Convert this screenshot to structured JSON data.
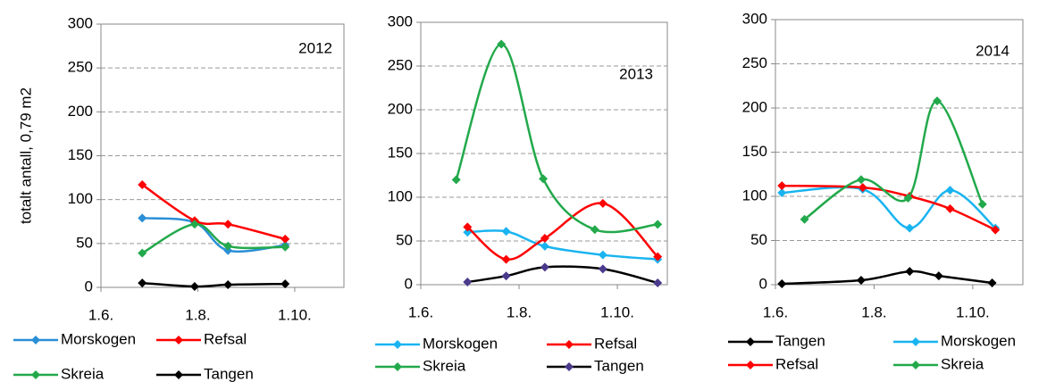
{
  "chart_data": [
    {
      "type": "line",
      "annotation": "2012",
      "y_label": "totalt antall, 0,79 m2",
      "xlim": [
        152,
        305
      ],
      "xticks": [
        {
          "value": 152,
          "label": "1.6."
        },
        {
          "value": 213,
          "label": "1.8."
        },
        {
          "value": 274,
          "label": "1.10."
        }
      ],
      "ylim": [
        0,
        300
      ],
      "yticks": [
        0,
        50,
        100,
        150,
        200,
        250,
        300
      ],
      "grid": true,
      "series": [
        {
          "name": "Morskogen",
          "color": "#2a8fd6",
          "x": [
            178,
            211,
            232,
            268
          ],
          "values": [
            79,
            74,
            42,
            48
          ]
        },
        {
          "name": "Refsal",
          "color": "#ff0000",
          "x": [
            178,
            211,
            232,
            268
          ],
          "values": [
            117,
            76,
            72,
            55
          ]
        },
        {
          "name": "Skreia",
          "color": "#22a94b",
          "x": [
            178,
            211,
            232,
            268
          ],
          "values": [
            39,
            72,
            47,
            46
          ]
        },
        {
          "name": "Tangen",
          "color": "#000000",
          "x": [
            178,
            211,
            232,
            268
          ],
          "values": [
            5,
            1,
            3,
            4
          ]
        }
      ]
    },
    {
      "type": "line",
      "annotation": "2013",
      "xlim": [
        152,
        305
      ],
      "xticks": [
        {
          "value": 152,
          "label": "1.6."
        },
        {
          "value": 213,
          "label": "1.8."
        },
        {
          "value": 274,
          "label": "1.10."
        }
      ],
      "ylim": [
        0,
        300
      ],
      "yticks": [
        0,
        50,
        100,
        150,
        200,
        250,
        300
      ],
      "grid": true,
      "series": [
        {
          "name": "Morskogen",
          "color": "#19b4f0",
          "x": [
            181,
            205,
            229,
            265,
            299
          ],
          "values": [
            60,
            61,
            44,
            34,
            29
          ]
        },
        {
          "name": "Refsal",
          "color": "#ff0000",
          "x": [
            181,
            205,
            229,
            265,
            299
          ],
          "values": [
            66,
            29,
            53,
            93,
            32
          ]
        },
        {
          "name": "Skreia",
          "color": "#22a94b",
          "x": [
            174,
            202,
            228,
            260,
            299
          ],
          "values": [
            120,
            275,
            121,
            63,
            69
          ]
        },
        {
          "name": "Tangen",
          "color": "#000000",
          "marker_color": "#4b3a8c",
          "x": [
            181,
            205,
            229,
            265,
            299
          ],
          "values": [
            3,
            10,
            20,
            18,
            2
          ]
        }
      ]
    },
    {
      "type": "line",
      "annotation": "2014",
      "xlim": [
        152,
        305
      ],
      "xticks": [
        {
          "value": 152,
          "label": "1.6."
        },
        {
          "value": 213,
          "label": "1.8."
        },
        {
          "value": 274,
          "label": "1.10."
        }
      ],
      "ylim": [
        0,
        300
      ],
      "yticks": [
        0,
        50,
        100,
        150,
        200,
        250,
        300
      ],
      "grid": true,
      "series": [
        {
          "name": "Tangen",
          "color": "#000000",
          "x": [
            156,
            205,
            235,
            253,
            286
          ],
          "values": [
            1,
            5,
            15,
            10,
            2
          ]
        },
        {
          "name": "Morskogen",
          "color": "#19b4f0",
          "x": [
            156,
            206,
            235,
            260,
            288
          ],
          "values": [
            104,
            108,
            64,
            107,
            64
          ]
        },
        {
          "name": "Refsal",
          "color": "#ff0000",
          "x": [
            156,
            206,
            235,
            260,
            288
          ],
          "values": [
            112,
            110,
            100,
            86,
            62
          ]
        },
        {
          "name": "Skreia",
          "color": "#22a94b",
          "x": [
            170,
            205,
            234,
            252,
            280
          ],
          "values": [
            74,
            119,
            98,
            208,
            91
          ]
        }
      ]
    }
  ]
}
